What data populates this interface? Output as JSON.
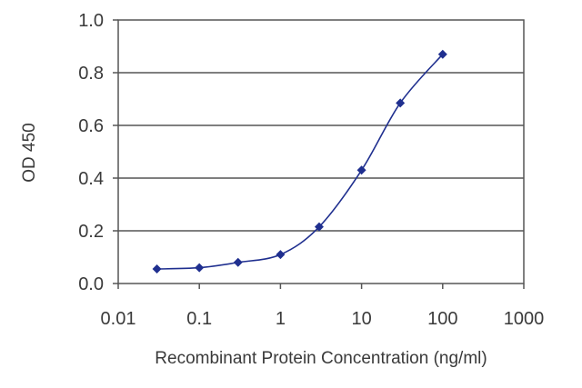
{
  "chart_data": {
    "type": "line",
    "xlabel": "Recombinant Protein Concentration (ng/ml)",
    "ylabel": "OD 450",
    "xscale": "log",
    "xlim": [
      0.01,
      1000
    ],
    "ylim": [
      0,
      1.0
    ],
    "xticks": [
      "0.01",
      "0.1",
      "1",
      "10",
      "100",
      "1000"
    ],
    "yticks": [
      "0.0",
      "0.2",
      "0.4",
      "0.6",
      "0.8",
      "1.0"
    ],
    "grid": "horizontal",
    "legend": "none",
    "color": "#1f2f8f",
    "series": [
      {
        "x": [
          0.03,
          0.1,
          0.3,
          1,
          3,
          10,
          30,
          100
        ],
        "y": [
          0.055,
          0.06,
          0.08,
          0.11,
          0.215,
          0.43,
          0.685,
          0.87
        ]
      }
    ]
  }
}
